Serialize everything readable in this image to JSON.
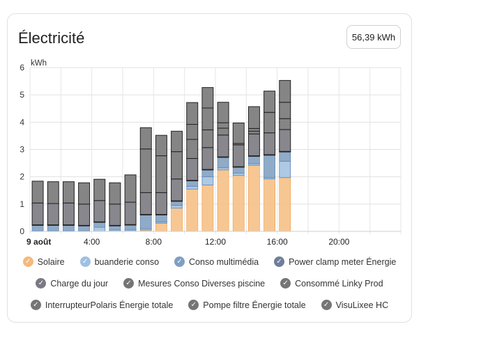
{
  "card": {
    "title": "Électricité",
    "total": "56,39 kWh"
  },
  "colors": {
    "solaire": "#f7c48d",
    "buanderie": "#a9c6e3",
    "multimedia": "#8aa6c4",
    "powerclamp": "#7d8aa3",
    "charge": "#8b8b94",
    "piscine": "#87878d",
    "linky": "#858585",
    "polaris": "#858585",
    "pompe": "#858585",
    "visulixee": "#858585"
  },
  "legend": [
    {
      "key": "solaire",
      "label": "Solaire",
      "color": "#f5b97c"
    },
    {
      "key": "buanderie",
      "label": "buanderie conso",
      "color": "#9ec0e2"
    },
    {
      "key": "multimedia",
      "label": "Conso multimédia",
      "color": "#7f9fc2"
    },
    {
      "key": "powerclamp",
      "label": "Power clamp meter Énergie",
      "color": "#6f7f9a"
    },
    {
      "key": "charge",
      "label": "Charge du jour",
      "color": "#7a7a84"
    },
    {
      "key": "piscine",
      "label": "Mesures Conso Diverses piscine",
      "color": "#757575"
    },
    {
      "key": "linky",
      "label": "Consommé Linky Prod",
      "color": "#757575"
    },
    {
      "key": "polaris",
      "label": "InterrupteurPolaris Énergie totale",
      "color": "#757575"
    },
    {
      "key": "pompe",
      "label": "Pompe filtre Énergie totale",
      "color": "#757575"
    },
    {
      "key": "visulixee",
      "label": "VisuLixee HC",
      "color": "#757575"
    }
  ],
  "chart_data": {
    "type": "bar",
    "stacked": true,
    "ylabel": "kWh",
    "ylim": [
      0,
      6
    ],
    "yticks": [
      "0",
      "1",
      "2",
      "3",
      "4",
      "5",
      "6"
    ],
    "xticks": [
      {
        "hour": 0,
        "label": "9 août",
        "bold": true
      },
      {
        "hour": 4,
        "label": "4:00",
        "bold": false
      },
      {
        "hour": 8,
        "label": "8:00",
        "bold": false
      },
      {
        "hour": 12,
        "label": "12:00",
        "bold": false
      },
      {
        "hour": 16,
        "label": "16:00",
        "bold": false
      },
      {
        "hour": 20,
        "label": "20:00",
        "bold": false
      }
    ],
    "x_hours": [
      0,
      1,
      2,
      3,
      4,
      5,
      6,
      7,
      8,
      9,
      10,
      11,
      12,
      13,
      14,
      15,
      16,
      17
    ],
    "series": [
      {
        "name": "Solaire",
        "key": "solaire",
        "values": [
          0,
          0,
          0,
          0,
          0,
          0,
          0,
          0.05,
          0.3,
          0.85,
          1.55,
          1.7,
          2.25,
          2.05,
          2.42,
          1.92,
          1.97,
          null
        ]
      },
      {
        "name": "buanderie conso",
        "key": "buanderie",
        "values": [
          0.02,
          0.02,
          0.02,
          0.02,
          0.15,
          0.05,
          0.05,
          0.05,
          0.05,
          0.1,
          0.1,
          0.3,
          0.08,
          0.08,
          0.06,
          0.05,
          0.6,
          null
        ]
      },
      {
        "name": "Conso multimédia",
        "key": "multimedia",
        "values": [
          0.2,
          0.2,
          0.2,
          0.18,
          0.18,
          0.15,
          0.18,
          0.5,
          0.25,
          0.15,
          0.2,
          0.25,
          0.38,
          0.22,
          0.27,
          0.82,
          0.34,
          null
        ]
      },
      {
        "name": "Power clamp meter Énergie",
        "key": "powerclamp",
        "values": [
          0.02,
          0.02,
          0.02,
          0.02,
          0.02,
          0.02,
          0.02,
          0.02,
          0.02,
          0.02,
          0.02,
          0.02,
          0.02,
          0.02,
          0.02,
          0.02,
          0.02,
          null
        ]
      },
      {
        "name": "Charge du jour",
        "key": "charge",
        "values": [
          0,
          0,
          0,
          0,
          0,
          0,
          0,
          0,
          0,
          0,
          0,
          0,
          0,
          0,
          0,
          0,
          0,
          null
        ]
      },
      {
        "name": "Mesures Conso Diverses piscine",
        "key": "piscine",
        "values": [
          0.8,
          0.78,
          0.8,
          0.78,
          0.78,
          0.78,
          0.82,
          0.8,
          0.8,
          0.8,
          0.8,
          0.8,
          0.8,
          0.8,
          0.8,
          0.8,
          0.8,
          null
        ]
      },
      {
        "name": "Consommé Linky Prod",
        "key": "linky",
        "values": [
          0.0,
          0.0,
          0.0,
          0.0,
          0.0,
          0.0,
          0.0,
          1.6,
          1.35,
          1.0,
          0.7,
          0.65,
          0.25,
          0.05,
          0.1,
          0.75,
          0.4,
          null
        ]
      },
      {
        "name": "InterrupteurPolaris Énergie totale",
        "key": "polaris",
        "values": [
          0,
          0,
          0,
          0,
          0,
          0,
          0,
          0,
          0,
          0,
          0,
          0,
          0,
          0,
          0,
          0,
          0,
          null
        ]
      },
      {
        "name": "Pompe filtre Énergie totale",
        "key": "pompe",
        "values": [
          0,
          0,
          0,
          0,
          0,
          0,
          0,
          0,
          0,
          0,
          0.55,
          0.8,
          0.2,
          0.0,
          0.1,
          0.0,
          0.6,
          null
        ]
      },
      {
        "name": "VisuLixee HC",
        "key": "visulixee",
        "values": [
          0.8,
          0.8,
          0.78,
          0.78,
          0.78,
          0.78,
          1.0,
          0.78,
          0.75,
          0.75,
          0.8,
          0.75,
          0.75,
          0.75,
          0.8,
          0.78,
          0.8,
          null
        ]
      }
    ]
  }
}
